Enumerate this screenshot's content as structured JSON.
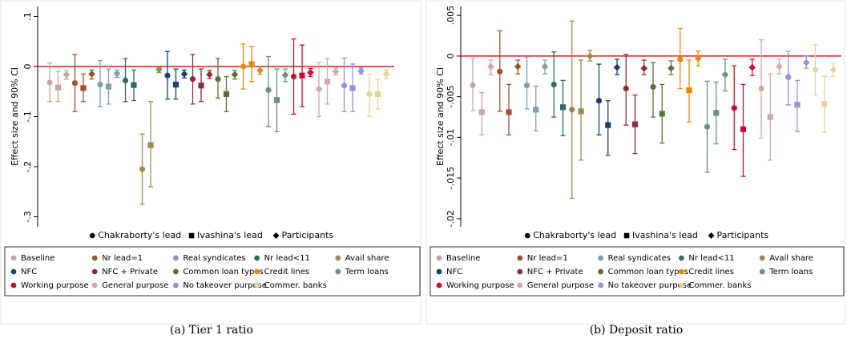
{
  "chart_data": [
    {
      "type": "errorbar",
      "caption": "(a) Tier 1 ratio",
      "ylabel": "Effect size and 90% CI",
      "ylim": [
        -0.32,
        0.12
      ],
      "yticks": [
        {
          "value": -0.3,
          "label": "-.3"
        },
        {
          "value": -0.2,
          "label": "-.2"
        },
        {
          "value": -0.1,
          "label": "-.1"
        },
        0,
        {
          "value": 0.1,
          "label": ".1"
        }
      ],
      "refline": 0,
      "refline_color": "#e0201b",
      "marker_legend": [
        {
          "shape": "circle",
          "label": "Chakraborty's lead"
        },
        {
          "shape": "square",
          "label": "Ivashina's lead"
        },
        {
          "shape": "diamond",
          "label": "Participants"
        }
      ],
      "series": [
        {
          "name": "Baseline",
          "color": "#c8a4a0",
          "values": [
            -0.032,
            -0.042,
            -0.016
          ],
          "lower": [
            -0.07,
            -0.07,
            -0.025
          ],
          "upper": [
            0.007,
            -0.01,
            -0.008
          ]
        },
        {
          "name": "Nr lead=1",
          "color": "#a0522d",
          "values": [
            -0.033,
            -0.043,
            -0.015
          ],
          "lower": [
            -0.09,
            -0.07,
            -0.025
          ],
          "upper": [
            0.024,
            -0.015,
            -0.007
          ]
        },
        {
          "name": "Real syndicates",
          "color": "#7f9bb3",
          "values": [
            -0.036,
            -0.04,
            -0.014
          ],
          "lower": [
            -0.08,
            -0.075,
            -0.022
          ],
          "upper": [
            0.012,
            -0.005,
            -0.007
          ]
        },
        {
          "name": "Nr lead<11",
          "color": "#2f6b60",
          "values": [
            -0.028,
            -0.037,
            null
          ],
          "lower": [
            -0.07,
            -0.068,
            null
          ],
          "upper": [
            0.016,
            -0.007,
            null
          ]
        },
        {
          "name": "Avail share",
          "color": "#9c8a4f",
          "values": [
            -0.205,
            -0.157,
            -0.006
          ],
          "lower": [
            -0.275,
            -0.24,
            -0.012
          ],
          "upper": [
            -0.135,
            -0.07,
            -0.002
          ]
        },
        {
          "name": "NFC",
          "color": "#1b3f6e",
          "values": [
            -0.018,
            -0.036,
            -0.015
          ],
          "lower": [
            -0.065,
            -0.065,
            -0.023
          ],
          "upper": [
            0.03,
            -0.005,
            -0.007
          ]
        },
        {
          "name": "NFC + Private",
          "color": "#8e2c3a",
          "values": [
            -0.025,
            -0.038,
            -0.016
          ],
          "lower": [
            -0.075,
            -0.07,
            -0.024
          ],
          "upper": [
            0.024,
            -0.005,
            -0.008
          ]
        },
        {
          "name": "Common loan types",
          "color": "#55752e",
          "values": [
            -0.025,
            -0.055,
            -0.016
          ],
          "lower": [
            -0.063,
            -0.09,
            -0.025
          ],
          "upper": [
            0.016,
            -0.02,
            -0.008
          ]
        },
        {
          "name": "Credit lines",
          "color": "#e8880c",
          "values": [
            0,
            0.005,
            -0.008
          ],
          "lower": [
            -0.045,
            -0.03,
            -0.016
          ],
          "upper": [
            0.045,
            0.04,
            -0.001
          ]
        },
        {
          "name": "Term loans",
          "color": "#6d8f80",
          "values": [
            -0.047,
            -0.067,
            -0.017
          ],
          "lower": [
            -0.12,
            -0.13,
            -0.03
          ],
          "upper": [
            0.02,
            -0.005,
            -0.005
          ]
        },
        {
          "name": "Working purpose",
          "color": "#c8102e",
          "values": [
            -0.02,
            -0.018,
            -0.012
          ],
          "lower": [
            -0.095,
            -0.08,
            -0.02
          ],
          "upper": [
            0.055,
            0.043,
            -0.004
          ]
        },
        {
          "name": "General purpose",
          "color": "#d4a9a4",
          "values": [
            -0.045,
            -0.03,
            -0.01
          ],
          "lower": [
            -0.1,
            -0.075,
            -0.017
          ],
          "upper": [
            0.008,
            0.016,
            -0.003
          ]
        },
        {
          "name": "No takeover purpose",
          "color": "#9a8fd8",
          "values": [
            -0.038,
            -0.043,
            -0.009
          ],
          "lower": [
            -0.09,
            -0.09,
            -0.015
          ],
          "upper": [
            0.017,
            0.005,
            -0.003
          ]
        },
        {
          "name": "Commer. banks",
          "color": "#e2d494",
          "values": [
            -0.055,
            -0.055,
            -0.015
          ],
          "lower": [
            -0.1,
            -0.085,
            -0.024
          ],
          "upper": [
            -0.015,
            -0.025,
            -0.007
          ]
        }
      ]
    },
    {
      "type": "errorbar",
      "caption": "(b) Deposit ratio",
      "ylabel": "Effect size and 90% CI",
      "ylim": [
        -0.021,
        0.0061
      ],
      "yticks": [
        {
          "value": -0.02,
          "label": "-.02"
        },
        {
          "value": -0.015,
          "label": "-.015"
        },
        {
          "value": -0.01,
          "label": "-.01"
        },
        {
          "value": -0.005,
          "label": "-.005"
        },
        0,
        {
          "value": 0.005,
          "label": ".005"
        }
      ],
      "refline": 0,
      "refline_color": "#e0201b",
      "marker_legend": [
        {
          "shape": "circle",
          "label": "Chakraborty's lead"
        },
        {
          "shape": "square",
          "label": "Ivashina's lead"
        },
        {
          "shape": "diamond",
          "label": "Participants"
        }
      ],
      "series": [
        {
          "name": "Baseline",
          "color": "#c8a4a0",
          "values": [
            -0.0036,
            -0.0069,
            -0.0013
          ],
          "lower": [
            -0.0067,
            -0.0097,
            -0.0023
          ],
          "upper": [
            -0.0003,
            -0.0045,
            -0.0005
          ]
        },
        {
          "name": "Nr lead=1",
          "color": "#a0522d",
          "values": [
            -0.0019,
            -0.0069,
            -0.0013
          ],
          "lower": [
            -0.0068,
            -0.0097,
            -0.0022
          ],
          "upper": [
            0.0031,
            -0.0035,
            -0.0005
          ]
        },
        {
          "name": "Real syndicates",
          "color": "#7f9bb3",
          "values": [
            -0.0036,
            -0.0066,
            -0.0013
          ],
          "lower": [
            -0.0065,
            -0.0092,
            -0.0022
          ],
          "upper": [
            -0.0001,
            -0.0037,
            -0.0005
          ]
        },
        {
          "name": "Nr lead<11",
          "color": "#2f6b60",
          "values": [
            -0.0035,
            -0.0063,
            null
          ],
          "lower": [
            -0.0075,
            -0.0098,
            null
          ],
          "upper": [
            0.0005,
            -0.003,
            null
          ]
        },
        {
          "name": "Avail share",
          "color": "#9c8a4f",
          "values": [
            -0.0066,
            -0.0068,
            0
          ],
          "lower": [
            -0.0175,
            -0.0128,
            -0.0006
          ],
          "upper": [
            0.0043,
            -0.0005,
            0.0007
          ]
        },
        {
          "name": "NFC",
          "color": "#1b3f6e",
          "values": [
            -0.0055,
            -0.0085,
            -0.0014
          ],
          "lower": [
            -0.0097,
            -0.0122,
            -0.0023
          ],
          "upper": [
            -0.001,
            -0.0055,
            -0.0004
          ]
        },
        {
          "name": "NFC + Private",
          "color": "#8e2c3a",
          "values": [
            -0.004,
            -0.0084,
            -0.0015
          ],
          "lower": [
            -0.0085,
            -0.012,
            -0.0023
          ],
          "upper": [
            0.0002,
            -0.0048,
            -0.0005
          ]
        },
        {
          "name": "Common loan types",
          "color": "#55752e",
          "values": [
            -0.0038,
            -0.0071,
            -0.0015
          ],
          "lower": [
            -0.0075,
            -0.0107,
            -0.0023
          ],
          "upper": [
            -0.0008,
            -0.0035,
            -0.0006
          ]
        },
        {
          "name": "Credit lines",
          "color": "#e8880c",
          "values": [
            -0.0004,
            -0.0042,
            -0.0003
          ],
          "lower": [
            -0.004,
            -0.0081,
            -0.0012
          ],
          "upper": [
            0.0034,
            -0.0005,
            0.0006
          ]
        },
        {
          "name": "Term loans",
          "color": "#6d8f80",
          "values": [
            -0.0087,
            -0.007,
            -0.0023
          ],
          "lower": [
            -0.0143,
            -0.0108,
            -0.0043
          ],
          "upper": [
            -0.0031,
            -0.0032,
            -0.0004
          ]
        },
        {
          "name": "Working purpose",
          "color": "#c8102e",
          "values": [
            -0.0064,
            -0.009,
            -0.0014
          ],
          "lower": [
            -0.0115,
            -0.0148,
            -0.0024
          ],
          "upper": [
            -0.0012,
            -0.0035,
            -0.0004
          ]
        },
        {
          "name": "General purpose",
          "color": "#d4a9a4",
          "values": [
            -0.004,
            -0.0075,
            -0.0013
          ],
          "lower": [
            -0.0101,
            -0.0128,
            -0.0022
          ],
          "upper": [
            0.002,
            -0.0022,
            -0.0004
          ]
        },
        {
          "name": "No takeover purpose",
          "color": "#9a8fd8",
          "values": [
            -0.0026,
            -0.006,
            -0.0008
          ],
          "lower": [
            -0.006,
            -0.0093,
            -0.0015
          ],
          "upper": [
            0.0006,
            -0.003,
            0
          ]
        },
        {
          "name": "Commer. banks",
          "color": "#e2d494",
          "values": [
            -0.0017,
            -0.0059,
            -0.0017
          ],
          "lower": [
            -0.0048,
            -0.0094,
            -0.0025
          ],
          "upper": [
            0.0014,
            -0.0025,
            -0.0009
          ]
        }
      ]
    }
  ]
}
